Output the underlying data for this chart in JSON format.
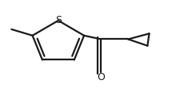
{
  "background": "#ffffff",
  "line_color": "#1a1a1a",
  "line_width": 1.6,
  "S_text": "S",
  "O_text": "O",
  "S_fontsize": 9,
  "O_fontsize": 9
}
